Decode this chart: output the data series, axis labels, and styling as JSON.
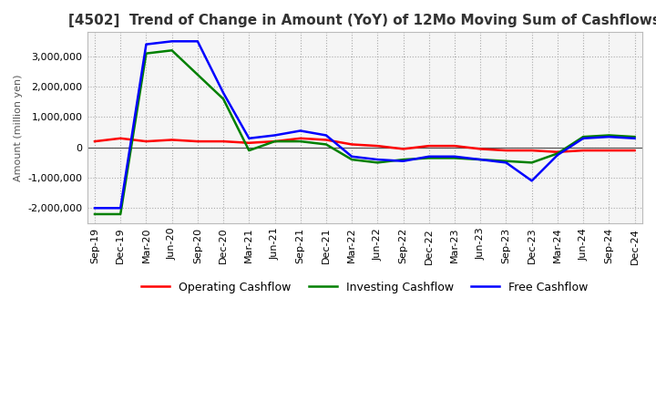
{
  "title": "[4502]  Trend of Change in Amount (YoY) of 12Mo Moving Sum of Cashflows",
  "ylabel": "Amount (million yen)",
  "ylim": [
    -2500000,
    3800000
  ],
  "yticks": [
    -2000000,
    -1000000,
    0,
    1000000,
    2000000,
    3000000
  ],
  "x_labels": [
    "Sep-19",
    "Dec-19",
    "Mar-20",
    "Jun-20",
    "Sep-20",
    "Dec-20",
    "Mar-21",
    "Jun-21",
    "Sep-21",
    "Dec-21",
    "Mar-22",
    "Jun-22",
    "Sep-22",
    "Dec-22",
    "Mar-23",
    "Jun-23",
    "Sep-23",
    "Dec-23",
    "Mar-24",
    "Jun-24",
    "Sep-24",
    "Dec-24"
  ],
  "operating": [
    200000,
    300000,
    200000,
    250000,
    200000,
    200000,
    150000,
    200000,
    300000,
    250000,
    100000,
    50000,
    -50000,
    50000,
    50000,
    -50000,
    -100000,
    -100000,
    -150000,
    -100000,
    -100000,
    -100000
  ],
  "investing": [
    -2200000,
    -2200000,
    3100000,
    3200000,
    2400000,
    1600000,
    -100000,
    200000,
    200000,
    100000,
    -400000,
    -500000,
    -400000,
    -350000,
    -350000,
    -400000,
    -450000,
    -500000,
    -200000,
    350000,
    400000,
    350000
  ],
  "free": [
    -2000000,
    -2000000,
    3400000,
    3500000,
    3500000,
    1800000,
    300000,
    400000,
    550000,
    400000,
    -300000,
    -400000,
    -450000,
    -300000,
    -300000,
    -400000,
    -500000,
    -1100000,
    -250000,
    300000,
    350000,
    300000
  ],
  "operating_color": "#ff0000",
  "investing_color": "#008000",
  "free_color": "#0000ff",
  "background_color": "#ffffff",
  "plot_bg_color": "#f5f5f5",
  "grid_color": "#aaaaaa",
  "zero_line_color": "#555555",
  "title_fontsize": 11,
  "axis_fontsize": 8,
  "legend_fontsize": 9,
  "linewidth": 1.8
}
